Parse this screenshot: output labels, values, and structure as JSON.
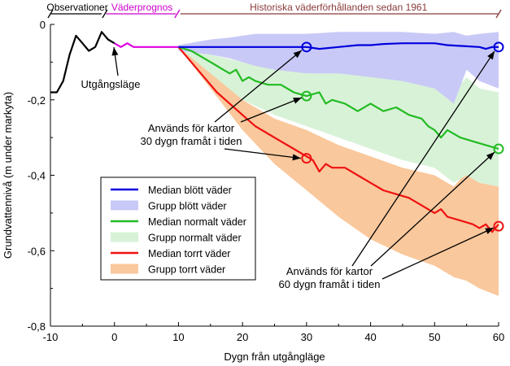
{
  "chart_data": {
    "type": "line",
    "xlabel": "Dygn från utgångläge",
    "ylabel": "Grundvattennivå (m under markyta)",
    "xlim": [
      -10,
      60
    ],
    "ylim": [
      -0.8,
      0
    ],
    "x_ticks": [
      "-10",
      "0",
      "10",
      "20",
      "30",
      "40",
      "50",
      "60"
    ],
    "y_ticks": [
      "0",
      "-0,2",
      "-0,4",
      "-0,6",
      "-0,8"
    ],
    "grid": false,
    "legend_position": "lower-left",
    "periods": [
      {
        "label": "Observationer",
        "x_start": -10,
        "x_end": -2,
        "color": "#000000"
      },
      {
        "label": "Väderprognos",
        "x_start": 0,
        "x_end": 10,
        "color": "#cc00cc"
      },
      {
        "label": "Historiska väderförhållanden sedan 1961",
        "x_start": 10,
        "x_end": 60,
        "color": "#8b3a3a"
      }
    ],
    "observations": {
      "color": "#000000",
      "x": [
        -10,
        -9,
        -8,
        -7,
        -6,
        -5,
        -4,
        -3,
        -2,
        -1,
        0
      ],
      "y": [
        -0.18,
        -0.18,
        -0.15,
        -0.08,
        -0.03,
        -0.05,
        -0.07,
        -0.06,
        -0.02,
        -0.04,
        -0.05
      ]
    },
    "forecast": {
      "color": "#dd00dd",
      "x": [
        0,
        1,
        2,
        3,
        4,
        5,
        6,
        7,
        8,
        9,
        10
      ],
      "y": [
        -0.05,
        -0.06,
        -0.05,
        -0.06,
        -0.06,
        -0.06,
        -0.06,
        -0.06,
        -0.06,
        -0.06,
        -0.06
      ]
    },
    "series": [
      {
        "name": "Median blött väder",
        "kind": "line",
        "color": "#0000dd",
        "x": [
          10,
          12,
          15,
          18,
          20,
          22,
          25,
          28,
          30,
          32,
          35,
          38,
          40,
          42,
          45,
          48,
          50,
          52,
          55,
          57,
          58,
          59,
          60
        ],
        "y": [
          -0.06,
          -0.06,
          -0.06,
          -0.06,
          -0.06,
          -0.06,
          -0.06,
          -0.06,
          -0.06,
          -0.065,
          -0.06,
          -0.055,
          -0.055,
          -0.052,
          -0.05,
          -0.05,
          -0.05,
          -0.055,
          -0.058,
          -0.06,
          -0.065,
          -0.06,
          -0.06
        ]
      },
      {
        "name": "Grupp blött väder",
        "kind": "band",
        "color": "#c9c9f7",
        "x": [
          10,
          15,
          18,
          20,
          22,
          25,
          30,
          35,
          40,
          45,
          50,
          53,
          55,
          57,
          60
        ],
        "upper": [
          -0.055,
          -0.04,
          -0.035,
          -0.03,
          -0.025,
          -0.025,
          -0.025,
          -0.02,
          -0.02,
          -0.02,
          -0.025,
          -0.02,
          -0.03,
          -0.025,
          -0.02
        ],
        "lower": [
          -0.07,
          -0.08,
          -0.09,
          -0.1,
          -0.11,
          -0.12,
          -0.13,
          -0.13,
          -0.14,
          -0.15,
          -0.17,
          -0.21,
          -0.12,
          -0.15,
          -0.17
        ]
      },
      {
        "name": "Median normalt väder",
        "kind": "line",
        "color": "#22bb22",
        "x": [
          10,
          12,
          14,
          16,
          17,
          18,
          19,
          20,
          21,
          22,
          24,
          26,
          28,
          30,
          32,
          33,
          34,
          36,
          38,
          40,
          42,
          44,
          46,
          48,
          49,
          50,
          51,
          52,
          54,
          56,
          58,
          60
        ],
        "y": [
          -0.06,
          -0.07,
          -0.09,
          -0.11,
          -0.12,
          -0.13,
          -0.12,
          -0.15,
          -0.14,
          -0.15,
          -0.16,
          -0.16,
          -0.18,
          -0.19,
          -0.18,
          -0.21,
          -0.2,
          -0.21,
          -0.23,
          -0.21,
          -0.23,
          -0.22,
          -0.24,
          -0.25,
          -0.27,
          -0.28,
          -0.3,
          -0.28,
          -0.3,
          -0.31,
          -0.32,
          -0.33
        ]
      },
      {
        "name": "Grupp normalt väder",
        "kind": "band",
        "color": "#d8f2d8",
        "x": [
          10,
          15,
          20,
          25,
          30,
          35,
          40,
          45,
          50,
          53,
          55,
          57,
          60
        ],
        "upper": [
          -0.06,
          -0.08,
          -0.1,
          -0.11,
          -0.12,
          -0.12,
          -0.13,
          -0.14,
          -0.15,
          -0.18,
          -0.14,
          -0.17,
          -0.18
        ],
        "lower": [
          -0.06,
          -0.13,
          -0.2,
          -0.24,
          -0.27,
          -0.3,
          -0.33,
          -0.36,
          -0.38,
          -0.42,
          -0.4,
          -0.42,
          -0.43
        ]
      },
      {
        "name": "Median torrt väder",
        "kind": "line",
        "color": "#ee1111",
        "x": [
          10,
          12,
          14,
          16,
          18,
          20,
          22,
          24,
          26,
          28,
          30,
          31,
          32,
          33,
          34,
          36,
          38,
          40,
          42,
          44,
          46,
          48,
          50,
          51,
          52,
          54,
          56,
          57,
          58,
          59,
          60
        ],
        "y": [
          -0.06,
          -0.1,
          -0.14,
          -0.18,
          -0.21,
          -0.24,
          -0.27,
          -0.29,
          -0.31,
          -0.33,
          -0.35,
          -0.36,
          -0.39,
          -0.37,
          -0.38,
          -0.38,
          -0.4,
          -0.42,
          -0.44,
          -0.45,
          -0.46,
          -0.48,
          -0.5,
          -0.49,
          -0.51,
          -0.52,
          -0.53,
          -0.54,
          -0.53,
          -0.55,
          -0.53
        ]
      },
      {
        "name": "Grupp torrt väder",
        "kind": "band",
        "color": "#f9c89c",
        "x": [
          10,
          15,
          20,
          25,
          30,
          35,
          40,
          45,
          50,
          53,
          55,
          57,
          60
        ],
        "upper": [
          -0.06,
          -0.12,
          -0.2,
          -0.25,
          -0.28,
          -0.32,
          -0.35,
          -0.38,
          -0.4,
          -0.43,
          -0.39,
          -0.42,
          -0.43
        ],
        "lower": [
          -0.06,
          -0.17,
          -0.28,
          -0.37,
          -0.44,
          -0.51,
          -0.57,
          -0.61,
          -0.64,
          -0.67,
          -0.68,
          -0.7,
          -0.72
        ]
      }
    ],
    "markers": [
      {
        "x": 30,
        "y": -0.06,
        "color": "#0000dd"
      },
      {
        "x": 30,
        "y": -0.19,
        "color": "#22bb22"
      },
      {
        "x": 30,
        "y": -0.355,
        "color": "#ee1111"
      },
      {
        "x": 60,
        "y": -0.06,
        "color": "#0000dd"
      },
      {
        "x": 60,
        "y": -0.33,
        "color": "#22bb22"
      },
      {
        "x": 60,
        "y": -0.535,
        "color": "#ee1111"
      }
    ],
    "annotations": [
      {
        "id": "utgang",
        "lines": [
          "Utgångsläge"
        ]
      },
      {
        "id": "kartor30",
        "lines": [
          "Används för kartor",
          "30 dygn framåt i tiden"
        ]
      },
      {
        "id": "kartor60",
        "lines": [
          "Används för kartor",
          "60 dygn framåt i tiden"
        ]
      }
    ]
  }
}
